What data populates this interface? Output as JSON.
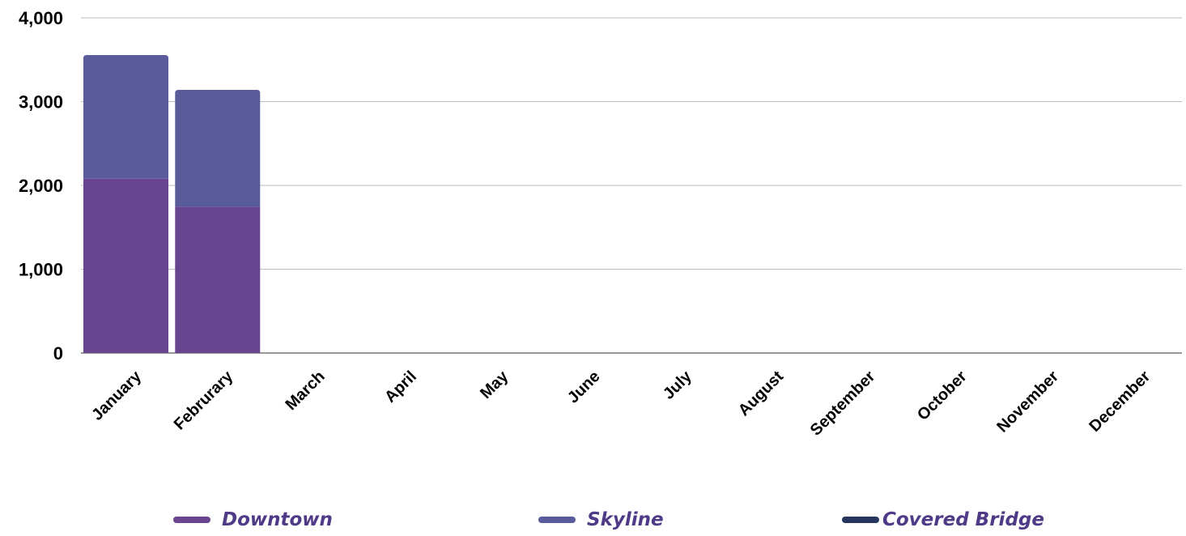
{
  "chart_data": {
    "type": "bar",
    "stacked": true,
    "categories": [
      "January",
      "Februrary",
      "March",
      "April",
      "May",
      "June",
      "July",
      "August",
      "September",
      "October",
      "November",
      "December"
    ],
    "series": [
      {
        "name": "Downtown",
        "color": "#68458e",
        "values": [
          2080,
          1745,
          0,
          0,
          0,
          0,
          0,
          0,
          0,
          0,
          0,
          0
        ]
      },
      {
        "name": "Skyline",
        "color": "#5a5b9a",
        "values": [
          1475,
          1395,
          0,
          0,
          0,
          0,
          0,
          0,
          0,
          0,
          0,
          0
        ]
      },
      {
        "name": "Covered Bridge",
        "color": "#26365e",
        "values": [
          0,
          0,
          0,
          0,
          0,
          0,
          0,
          0,
          0,
          0,
          0,
          0
        ]
      }
    ],
    "yticks": [
      "0",
      "1,000",
      "2,000",
      "3,000",
      "4,000"
    ],
    "ylim": [
      0,
      4000
    ],
    "grid": true,
    "legend_position": "bottom"
  }
}
